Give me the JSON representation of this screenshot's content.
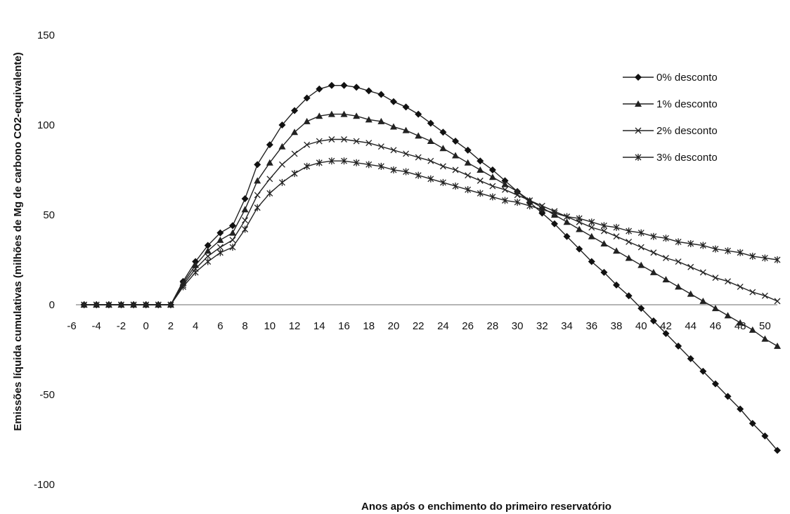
{
  "chart_data": {
    "type": "line",
    "title": "",
    "xlabel": "Anos após o enchimento do primeiro reservatório",
    "ylabel": "Emissões líquida cumulativas (milhões de  Mg de carbono CO2-equivalente)",
    "xlim": [
      -6,
      51
    ],
    "ylim": [
      -100,
      150
    ],
    "xticks": [
      "-6",
      "-4",
      "-2",
      "0",
      "2",
      "4",
      "6",
      "8",
      "10",
      "12",
      "14",
      "16",
      "18",
      "20",
      "22",
      "24",
      "26",
      "28",
      "30",
      "32",
      "34",
      "36",
      "38",
      "40",
      "42",
      "44",
      "46",
      "48",
      "50"
    ],
    "yticks": [
      "-100",
      "-50",
      "0",
      "50",
      "100",
      "150"
    ],
    "x": [
      -5,
      -4,
      -3,
      -2,
      -1,
      0,
      1,
      2,
      3,
      4,
      5,
      6,
      7,
      8,
      9,
      10,
      11,
      12,
      13,
      14,
      15,
      16,
      17,
      18,
      19,
      20,
      21,
      22,
      23,
      24,
      25,
      26,
      27,
      28,
      29,
      30,
      31,
      32,
      33,
      34,
      35,
      36,
      37,
      38,
      39,
      40,
      41,
      42,
      43,
      44,
      45,
      46,
      47,
      48,
      49,
      50,
      51
    ],
    "grid": false,
    "legend_position": "top-right",
    "series": [
      {
        "name": "0% desconto",
        "marker": "diamond",
        "values": [
          0,
          0,
          0,
          0,
          0,
          0,
          0,
          0,
          13,
          24,
          33,
          40,
          44,
          59,
          78,
          89,
          100,
          108,
          115,
          120,
          122,
          122,
          121,
          119,
          117,
          113,
          110,
          106,
          101,
          96,
          91,
          86,
          80,
          75,
          69,
          63,
          57,
          51,
          45,
          38,
          31,
          24,
          18,
          11,
          5,
          -2,
          -9,
          -16,
          -23,
          -30,
          -37,
          -44,
          -51,
          -58,
          -66,
          -73,
          -81
        ]
      },
      {
        "name": "1% desconto",
        "marker": "triangle",
        "values": [
          0,
          0,
          0,
          0,
          0,
          0,
          0,
          0,
          12,
          22,
          30,
          36,
          40,
          53,
          69,
          79,
          88,
          96,
          102,
          105,
          106,
          106,
          105,
          103,
          102,
          99,
          97,
          94,
          91,
          87,
          83,
          79,
          75,
          71,
          67,
          63,
          58,
          54,
          50,
          46,
          42,
          38,
          34,
          30,
          26,
          22,
          18,
          14,
          10,
          6,
          2,
          -2,
          -6,
          -10,
          -14,
          -19,
          -23
        ]
      },
      {
        "name": "2% desconto",
        "marker": "x",
        "values": [
          0,
          0,
          0,
          0,
          0,
          0,
          0,
          0,
          11,
          20,
          27,
          32,
          36,
          47,
          61,
          70,
          78,
          84,
          89,
          91,
          92,
          92,
          91,
          90,
          88,
          86,
          84,
          82,
          80,
          77,
          75,
          72,
          69,
          66,
          64,
          61,
          58,
          55,
          52,
          49,
          46,
          43,
          41,
          38,
          35,
          32,
          29,
          26,
          24,
          21,
          18,
          15,
          13,
          10,
          7,
          5,
          2
        ]
      },
      {
        "name": "3% desconto",
        "marker": "asterisk",
        "values": [
          0,
          0,
          0,
          0,
          0,
          0,
          0,
          0,
          10,
          18,
          24,
          29,
          32,
          42,
          54,
          62,
          68,
          73,
          77,
          79,
          80,
          80,
          79,
          78,
          77,
          75,
          74,
          72,
          70,
          68,
          66,
          64,
          62,
          60,
          58,
          57,
          55,
          53,
          51,
          49,
          48,
          46,
          44,
          43,
          41,
          40,
          38,
          37,
          35,
          34,
          33,
          31,
          30,
          29,
          27,
          26,
          25
        ]
      }
    ]
  }
}
